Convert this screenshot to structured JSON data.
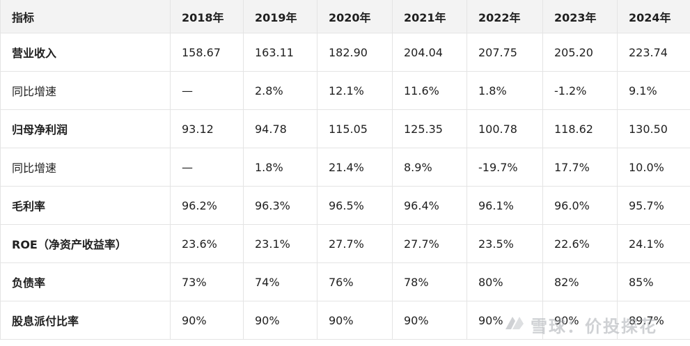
{
  "table": {
    "headers": [
      "指标",
      "2018年",
      "2019年",
      "2020年",
      "2021年",
      "2022年",
      "2023年",
      "2024年"
    ],
    "rows": [
      {
        "label": "营业收入",
        "bold": true,
        "values": [
          "158.67",
          "163.11",
          "182.90",
          "204.04",
          "207.75",
          "205.20",
          "223.74"
        ]
      },
      {
        "label": "同比增速",
        "bold": false,
        "values": [
          "—",
          "2.8%",
          "12.1%",
          "11.6%",
          "1.8%",
          "-1.2%",
          "9.1%"
        ]
      },
      {
        "label": "归母净利润",
        "bold": true,
        "values": [
          "93.12",
          "94.78",
          "115.05",
          "125.35",
          "100.78",
          "118.62",
          "130.50"
        ]
      },
      {
        "label": "同比增速",
        "bold": false,
        "values": [
          "—",
          "1.8%",
          "21.4%",
          "8.9%",
          "-19.7%",
          "17.7%",
          "10.0%"
        ]
      },
      {
        "label": "毛利率",
        "bold": true,
        "values": [
          "96.2%",
          "96.3%",
          "96.5%",
          "96.4%",
          "96.1%",
          "96.0%",
          "95.7%"
        ]
      },
      {
        "label": "ROE（净资产收益率）",
        "bold": true,
        "values": [
          "23.6%",
          "23.1%",
          "27.7%",
          "27.7%",
          "23.5%",
          "22.6%",
          "24.1%"
        ]
      },
      {
        "label": "负债率",
        "bold": true,
        "values": [
          "73%",
          "74%",
          "76%",
          "78%",
          "80%",
          "82%",
          "85%"
        ]
      },
      {
        "label": "股息派付比率",
        "bold": true,
        "values": [
          "90%",
          "90%",
          "90%",
          "90%",
          "90%",
          "90%",
          "89.7%"
        ]
      }
    ]
  },
  "watermark": {
    "text": "雪球：价投探花",
    "icon": "snowball-logo-icon"
  }
}
